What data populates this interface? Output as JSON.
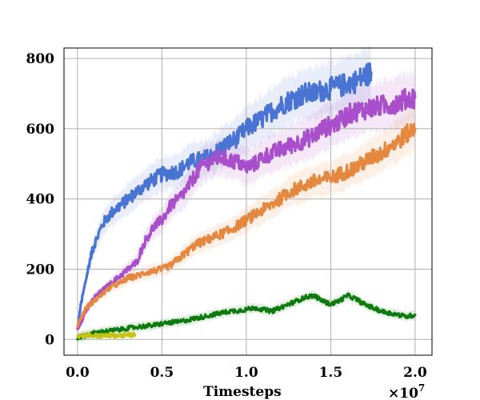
{
  "chart_data": {
    "type": "line",
    "title": "",
    "xlabel": "Timesteps",
    "ylabel": "",
    "x_multiplier_label": "×10",
    "x_multiplier_exponent": "7",
    "xlim": [
      -0.08,
      2.1
    ],
    "ylim": [
      -45,
      830
    ],
    "x_ticks": [
      0.0,
      0.5,
      1.0,
      1.5,
      2.0
    ],
    "x_tick_labels": [
      "0.0",
      "0.5",
      "1.0",
      "1.5",
      "2.0"
    ],
    "y_ticks": [
      0,
      200,
      400,
      600,
      800
    ],
    "y_tick_labels": [
      "0",
      "200",
      "400",
      "600",
      "800"
    ],
    "grid": true,
    "series": [
      {
        "color": "#4a74d4",
        "x": [
          0.0,
          0.02,
          0.05,
          0.08,
          0.1,
          0.15,
          0.2,
          0.25,
          0.3,
          0.35,
          0.4,
          0.45,
          0.5,
          0.55,
          0.6,
          0.65,
          0.7,
          0.75,
          0.8,
          0.85,
          0.9,
          0.95,
          1.0,
          1.05,
          1.1,
          1.15,
          1.2,
          1.25,
          1.3,
          1.35,
          1.4,
          1.45,
          1.5,
          1.55,
          1.6,
          1.65,
          1.7,
          1.74
        ],
        "y": [
          30,
          100,
          170,
          240,
          270,
          330,
          360,
          380,
          400,
          420,
          440,
          455,
          470,
          475,
          480,
          500,
          510,
          515,
          525,
          545,
          560,
          575,
          600,
          615,
          630,
          650,
          665,
          680,
          690,
          700,
          700,
          710,
          715,
          720,
          730,
          735,
          750,
          760
        ]
      },
      {
        "color": "#aa4fcc",
        "x": [
          0.0,
          0.05,
          0.1,
          0.15,
          0.2,
          0.25,
          0.3,
          0.35,
          0.4,
          0.45,
          0.5,
          0.55,
          0.6,
          0.65,
          0.7,
          0.75,
          0.8,
          0.85,
          0.9,
          0.95,
          1.0,
          1.05,
          1.1,
          1.15,
          1.2,
          1.25,
          1.3,
          1.35,
          1.4,
          1.45,
          1.5,
          1.55,
          1.6,
          1.65,
          1.7,
          1.75,
          1.8,
          1.85,
          1.9,
          1.95,
          2.0
        ],
        "y": [
          30,
          80,
          120,
          140,
          160,
          180,
          200,
          220,
          280,
          320,
          340,
          380,
          400,
          430,
          470,
          500,
          510,
          520,
          510,
          505,
          490,
          500,
          520,
          530,
          540,
          550,
          560,
          570,
          580,
          600,
          610,
          620,
          640,
          650,
          655,
          660,
          665,
          670,
          675,
          685,
          690
        ]
      },
      {
        "color": "#e5883f",
        "x": [
          0.0,
          0.05,
          0.1,
          0.15,
          0.2,
          0.25,
          0.3,
          0.35,
          0.4,
          0.45,
          0.5,
          0.55,
          0.6,
          0.65,
          0.7,
          0.75,
          0.8,
          0.85,
          0.9,
          0.95,
          1.0,
          1.05,
          1.1,
          1.15,
          1.2,
          1.25,
          1.3,
          1.35,
          1.4,
          1.45,
          1.5,
          1.55,
          1.6,
          1.65,
          1.7,
          1.75,
          1.8,
          1.85,
          1.9,
          1.95,
          2.0
        ],
        "y": [
          40,
          90,
          110,
          130,
          150,
          160,
          175,
          180,
          190,
          195,
          200,
          210,
          230,
          250,
          270,
          280,
          290,
          300,
          310,
          325,
          340,
          355,
          370,
          385,
          400,
          420,
          430,
          440,
          450,
          455,
          460,
          470,
          480,
          490,
          505,
          520,
          530,
          550,
          565,
          585,
          600
        ]
      },
      {
        "color": "#0c7a0c",
        "x": [
          0.0,
          0.05,
          0.1,
          0.15,
          0.2,
          0.25,
          0.3,
          0.35,
          0.4,
          0.45,
          0.5,
          0.55,
          0.6,
          0.65,
          0.7,
          0.75,
          0.8,
          0.85,
          0.9,
          0.95,
          1.0,
          1.05,
          1.1,
          1.15,
          1.2,
          1.25,
          1.3,
          1.35,
          1.4,
          1.45,
          1.5,
          1.55,
          1.6,
          1.65,
          1.7,
          1.75,
          1.8,
          1.85,
          1.9,
          1.95,
          2.0
        ],
        "y": [
          5,
          12,
          18,
          22,
          25,
          28,
          32,
          35,
          38,
          40,
          45,
          48,
          50,
          55,
          60,
          65,
          70,
          75,
          80,
          82,
          85,
          90,
          85,
          80,
          90,
          100,
          110,
          120,
          125,
          110,
          100,
          110,
          125,
          115,
          100,
          90,
          80,
          75,
          70,
          65,
          70
        ]
      },
      {
        "color": "#c5c316",
        "x": [
          0.0,
          0.05,
          0.1,
          0.15,
          0.2,
          0.25,
          0.3,
          0.34
        ],
        "y": [
          10,
          12,
          11,
          10,
          12,
          11,
          12,
          13
        ]
      }
    ]
  }
}
